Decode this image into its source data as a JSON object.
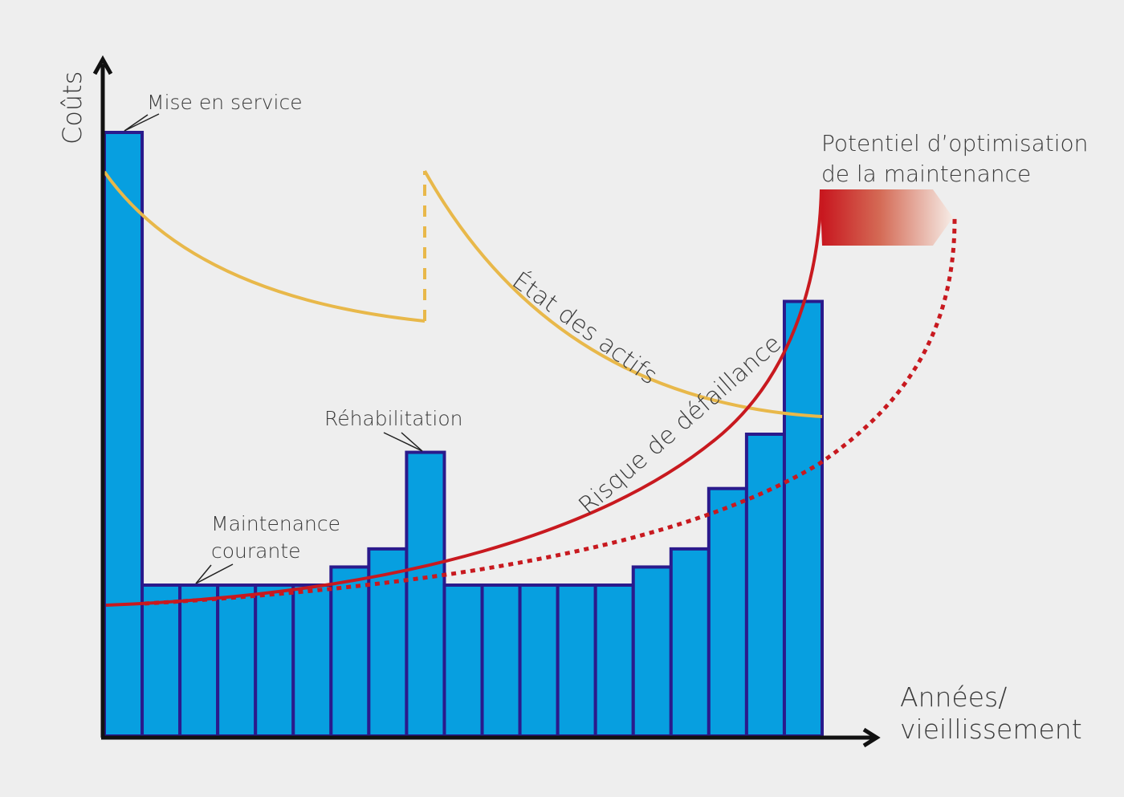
{
  "colors": {
    "background": "#eeeeee",
    "bar_fill": "#079fe0",
    "bar_stroke": "#2a1a8c",
    "asset_condition_curve": "#e8b84a",
    "failure_risk_curve": "#c8191f",
    "axis": "#111111",
    "text": "#3a3a3a"
  },
  "axes": {
    "y_label": "Coûts",
    "x_label_line1": "Années/",
    "x_label_line2": "vieillissement"
  },
  "annotations": {
    "commissioning": "Mise en service",
    "rehabilitation": "Réhabilitation",
    "routine_maintenance_line1": "Maintenance",
    "routine_maintenance_line2": "courante",
    "optimization_line1": "Potentiel d’optimisation",
    "optimization_line2": "de la maintenance",
    "asset_condition": "État des actifs",
    "failure_risk": "Risque de défaillance"
  },
  "chart_data": {
    "type": "bar",
    "title": "",
    "xlabel": "Années/vieillissement",
    "ylabel": "Coûts",
    "grid": false,
    "categories": [
      "1",
      "2",
      "3",
      "4",
      "5",
      "6",
      "7",
      "8",
      "9",
      "10",
      "11",
      "12",
      "13",
      "14",
      "15",
      "16",
      "17",
      "18",
      "19"
    ],
    "values": [
      100,
      25,
      25,
      25,
      25,
      25,
      28,
      31,
      47,
      25,
      25,
      25,
      25,
      25,
      28,
      31,
      41,
      50,
      72
    ],
    "ylim": [
      0,
      100
    ],
    "overlays": [
      {
        "name": "État des actifs",
        "type": "line",
        "description": "decreasing curve, reset upward at rehabilitation (dashed jump), decreasing again"
      },
      {
        "name": "Risque de défaillance",
        "type": "line",
        "description": "exponentially increasing solid curve"
      },
      {
        "name": "Risque de défaillance (optimisé)",
        "type": "line",
        "style": "dotted",
        "description": "slower increasing dotted curve"
      },
      {
        "name": "Potentiel d’optimisation de la maintenance",
        "type": "area",
        "description": "gradient band between solid and dotted risk curves"
      }
    ],
    "bar_annotations": [
      {
        "bar": 1,
        "label": "Mise en service"
      },
      {
        "bar": 2,
        "label": "Maintenance courante"
      },
      {
        "bar": 9,
        "label": "Réhabilitation"
      }
    ]
  }
}
